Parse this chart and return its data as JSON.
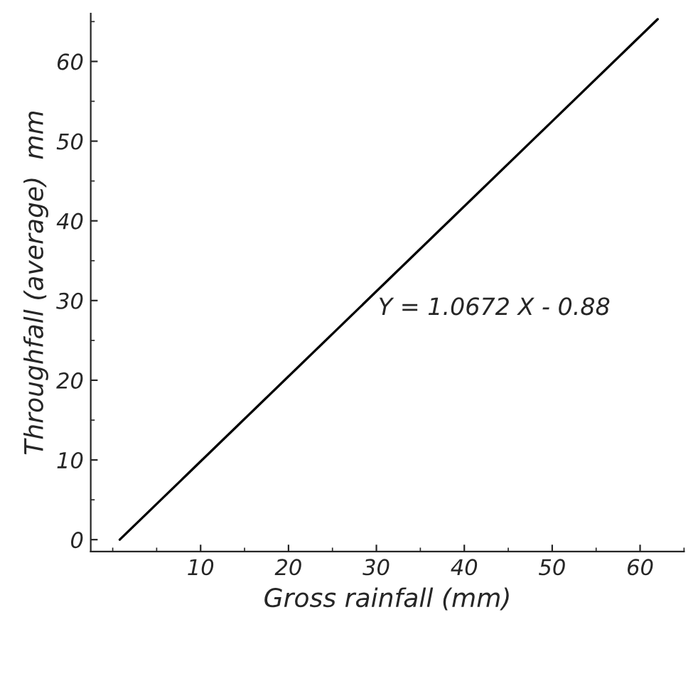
{
  "chart_data": {
    "type": "line",
    "xlabel": "Gross rainfall (mm)",
    "ylabel": "Throughfall (average)  mm",
    "series": [
      {
        "color": "#000000",
        "x": [
          0.8,
          62
        ],
        "values": [
          0,
          65.3
        ]
      }
    ],
    "xlim": [
      -2.5,
      65
    ],
    "ylim": [
      -1.5,
      66
    ],
    "xticks": [
      10,
      20,
      30,
      40,
      50,
      60
    ],
    "yticks": [
      0,
      10,
      20,
      30,
      40,
      50,
      60
    ],
    "annotations": [
      "Y = 1.0672 X - 0.88"
    ],
    "grid": false,
    "legend": false,
    "marker": "none",
    "line_style": "solid"
  }
}
